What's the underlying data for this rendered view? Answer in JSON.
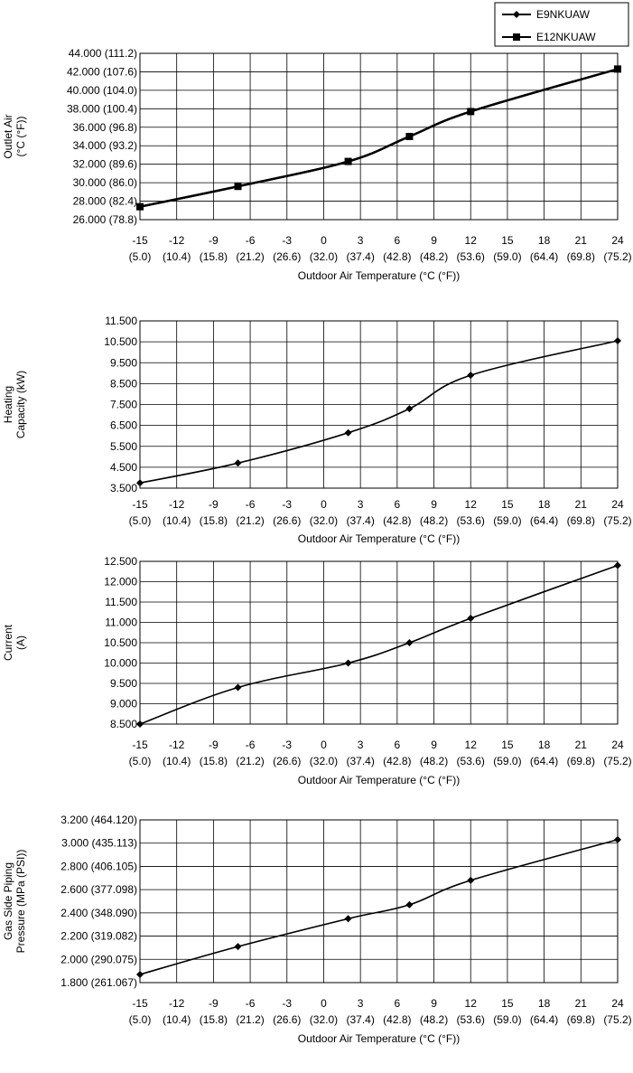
{
  "chart_data": [
    {
      "type": "line",
      "ylabel_lines": [
        "Outlet Air",
        "(°C (°F))"
      ],
      "xlabel": "Outdoor Air Temperature (°C (°F))",
      "xlim": [
        -15,
        24
      ],
      "ylim": [
        26,
        44
      ],
      "x_ticks": [
        -15,
        -12,
        -9,
        -6,
        -3,
        0,
        3,
        6,
        9,
        12,
        15,
        18,
        21,
        24
      ],
      "x_tick_labels": [
        [
          "-15",
          "(5.0)"
        ],
        [
          "-12",
          "(10.4)"
        ],
        [
          "-9",
          "(15.8)"
        ],
        [
          "-6",
          "(21.2)"
        ],
        [
          "-3",
          "(26.6)"
        ],
        [
          "0",
          "(32.0)"
        ],
        [
          "3",
          "(37.4)"
        ],
        [
          "6",
          "(42.8)"
        ],
        [
          "9",
          "(48.2)"
        ],
        [
          "12",
          "(53.6)"
        ],
        [
          "15",
          "(59.0)"
        ],
        [
          "18",
          "(64.4)"
        ],
        [
          "21",
          "(69.8)"
        ],
        [
          "24",
          "(75.2)"
        ]
      ],
      "y_ticks": [
        26,
        28,
        30,
        32,
        34,
        36,
        38,
        40,
        42,
        44
      ],
      "y_tick_labels": [
        "26.000 (78.8)",
        "28.000 (82.4)",
        "30.000 (86.0)",
        "32.000 (89.6)",
        "34.000 (93.2)",
        "36.000 (96.8)",
        "38.000 (100.4)",
        "40.000 (104.0)",
        "42.000 (107.6)",
        "44.000 (111.2)"
      ],
      "grid": true,
      "legend": "top-right",
      "series": [
        {
          "name": "E9NKUAW",
          "marker": "diamond",
          "x": [
            -15,
            -7,
            2,
            7,
            12,
            24
          ],
          "y": [
            27.4,
            29.6,
            32.3,
            35.0,
            37.7,
            42.3
          ]
        },
        {
          "name": "E12NKUAW",
          "marker": "square",
          "x": [
            -15,
            -7,
            2,
            7,
            12,
            24
          ],
          "y": [
            27.4,
            29.6,
            32.3,
            35.0,
            37.7,
            42.3
          ]
        }
      ]
    },
    {
      "type": "line",
      "ylabel_lines": [
        "Heating",
        "Capacity (kW)"
      ],
      "xlabel": "Outdoor Air Temperature (°C (°F))",
      "xlim": [
        -15,
        24
      ],
      "ylim": [
        3.5,
        11.5
      ],
      "x_ticks": [
        -15,
        -12,
        -9,
        -6,
        -3,
        0,
        3,
        6,
        9,
        12,
        15,
        18,
        21,
        24
      ],
      "x_tick_labels": [
        [
          "-15",
          "(5.0)"
        ],
        [
          "-12",
          "(10.4)"
        ],
        [
          "-9",
          "(15.8)"
        ],
        [
          "-6",
          "(21.2)"
        ],
        [
          "-3",
          "(26.6)"
        ],
        [
          "0",
          "(32.0)"
        ],
        [
          "3",
          "(37.4)"
        ],
        [
          "6",
          "(42.8)"
        ],
        [
          "9",
          "(48.2)"
        ],
        [
          "12",
          "(53.6)"
        ],
        [
          "15",
          "(59.0)"
        ],
        [
          "18",
          "(64.4)"
        ],
        [
          "21",
          "(69.8)"
        ],
        [
          "24",
          "(75.2)"
        ]
      ],
      "y_ticks": [
        3.5,
        4.5,
        5.5,
        6.5,
        7.5,
        8.5,
        9.5,
        10.5,
        11.5
      ],
      "y_tick_labels": [
        "3.500",
        "4.500",
        "5.500",
        "6.500",
        "7.500",
        "8.500",
        "9.500",
        "10.500",
        "11.500"
      ],
      "grid": true,
      "series": [
        {
          "marker": "diamond",
          "x": [
            -15,
            -7,
            2,
            7,
            12,
            24
          ],
          "y": [
            3.75,
            4.7,
            6.15,
            7.3,
            8.9,
            10.55
          ]
        }
      ]
    },
    {
      "type": "line",
      "ylabel_lines": [
        "Current",
        "(A)"
      ],
      "xlabel": "Outdoor Air Temperature (°C (°F))",
      "xlim": [
        -15,
        24
      ],
      "ylim": [
        8.5,
        12.5
      ],
      "x_ticks": [
        -15,
        -12,
        -9,
        -6,
        -3,
        0,
        3,
        6,
        9,
        12,
        15,
        18,
        21,
        24
      ],
      "x_tick_labels": [
        [
          "-15",
          "(5.0)"
        ],
        [
          "-12",
          "(10.4)"
        ],
        [
          "-9",
          "(15.8)"
        ],
        [
          "-6",
          "(21.2)"
        ],
        [
          "-3",
          "(26.6)"
        ],
        [
          "0",
          "(32.0)"
        ],
        [
          "3",
          "(37.4)"
        ],
        [
          "6",
          "(42.8)"
        ],
        [
          "9",
          "(48.2)"
        ],
        [
          "12",
          "(53.6)"
        ],
        [
          "15",
          "(59.0)"
        ],
        [
          "18",
          "(64.4)"
        ],
        [
          "21",
          "(69.8)"
        ],
        [
          "24",
          "(75.2)"
        ]
      ],
      "y_ticks": [
        8.5,
        9.0,
        9.5,
        10.0,
        10.5,
        11.0,
        11.5,
        12.0,
        12.5
      ],
      "y_tick_labels": [
        "8.500",
        "9.000",
        "9.500",
        "10.000",
        "10.500",
        "11.000",
        "11.500",
        "12.000",
        "12.500"
      ],
      "grid": true,
      "series": [
        {
          "marker": "diamond",
          "x": [
            -15,
            -7,
            2,
            7,
            12,
            24
          ],
          "y": [
            8.5,
            9.4,
            10.0,
            10.5,
            11.1,
            12.4
          ]
        }
      ]
    },
    {
      "type": "line",
      "ylabel_lines": [
        "Gas Side Piping",
        "Pressure (MPa (PSI))"
      ],
      "xlabel": "Outdoor Air Temperature (°C (°F))",
      "xlim": [
        -15,
        24
      ],
      "ylim": [
        1.8,
        3.2
      ],
      "x_ticks": [
        -15,
        -12,
        -9,
        -6,
        -3,
        0,
        3,
        6,
        9,
        12,
        15,
        18,
        21,
        24
      ],
      "x_tick_labels": [
        [
          "-15",
          "(5.0)"
        ],
        [
          "-12",
          "(10.4)"
        ],
        [
          "-9",
          "(15.8)"
        ],
        [
          "-6",
          "(21.2)"
        ],
        [
          "-3",
          "(26.6)"
        ],
        [
          "0",
          "(32.0)"
        ],
        [
          "3",
          "(37.4)"
        ],
        [
          "6",
          "(42.8)"
        ],
        [
          "9",
          "(48.2)"
        ],
        [
          "12",
          "(53.6)"
        ],
        [
          "15",
          "(59.0)"
        ],
        [
          "18",
          "(64.4)"
        ],
        [
          "21",
          "(69.8)"
        ],
        [
          "24",
          "(75.2)"
        ]
      ],
      "y_ticks": [
        1.8,
        2.0,
        2.2,
        2.4,
        2.6,
        2.8,
        3.0,
        3.2
      ],
      "y_tick_labels": [
        "1.800 (261.067)",
        "2.000 (290.075)",
        "2.200 (319.082)",
        "2.400 (348.090)",
        "2.600 (377.098)",
        "2.800 (406.105)",
        "3.000 (435.113)",
        "3.200 (464.120)"
      ],
      "grid": true,
      "series": [
        {
          "marker": "diamond",
          "x": [
            -15,
            -7,
            2,
            7,
            12,
            24
          ],
          "y": [
            1.87,
            2.11,
            2.35,
            2.47,
            2.68,
            3.03
          ]
        }
      ]
    }
  ]
}
